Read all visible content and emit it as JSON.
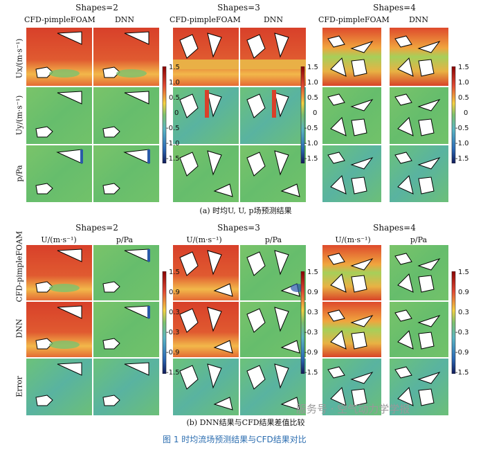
{
  "figure_caption": "图 1 时均流场预测结果与CFD结果对比",
  "watermark": "服务号 · 空气动力学学报",
  "part_a": {
    "caption": "(a) 时均U, U, p场预测结果",
    "groups": [
      {
        "title": "Shapes=2",
        "columns": [
          "CFD-pimpleFOAM",
          "DNN"
        ]
      },
      {
        "title": "Shapes=3",
        "columns": [
          "CFD-pimpleFOAM",
          "DNN"
        ]
      },
      {
        "title": "Shapes=4",
        "columns": [
          "CFD-pimpleFOAM",
          "DNN"
        ]
      }
    ],
    "rows": [
      "Ux/(m·s⁻¹)",
      "Uy/(m·s⁻¹)",
      "p/Pa"
    ],
    "colorbar_ticks": [
      "1.5",
      "1.0",
      "0.5",
      "0",
      "-0.5",
      "-1.0",
      "-1.5"
    ]
  },
  "part_b": {
    "caption": "(b) DNN结果与CFD结果差值比较",
    "groups": [
      {
        "title": "Shapes=2",
        "columns": [
          "U/(m·s⁻¹)",
          "p/Pa"
        ]
      },
      {
        "title": "Shapes=3",
        "columns": [
          "U/(m·s⁻¹)",
          "p/Pa"
        ]
      },
      {
        "title": "Shapes=4",
        "columns": [
          "U/(m·s⁻¹)",
          "p/Pa"
        ]
      }
    ],
    "rows": [
      "CFD-pimpleFOAM",
      "DNN",
      "Error"
    ],
    "colorbar_ticks": [
      "1.5",
      "0.9",
      "0.3",
      "-0.3",
      "-0.9",
      "-1.5"
    ]
  },
  "colors": {
    "red": "#d9402a",
    "green": "#6cc06a",
    "teal": "#5ab6a4",
    "blue": "#2a5aa8"
  }
}
